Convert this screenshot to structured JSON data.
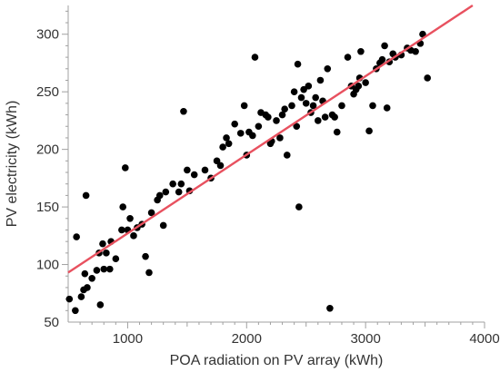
{
  "chart_data": {
    "type": "scatter",
    "title": "",
    "xlabel": "POA radiation on PV array (kWh)",
    "ylabel": "PV electricity (kWh)",
    "xlim": [
      500,
      4000
    ],
    "ylim": [
      50,
      325
    ],
    "xticks": [
      1000,
      2000,
      3000,
      4000
    ],
    "yticks": [
      50,
      100,
      150,
      200,
      250,
      300
    ],
    "grid": false,
    "legend": "none",
    "colors": {
      "points": "#000000",
      "fit_line": "#e8515f",
      "axis": "#a0a0a0"
    },
    "series": [
      {
        "points": [
          [
            510,
            70
          ],
          [
            560,
            60
          ],
          [
            570,
            124
          ],
          [
            610,
            72
          ],
          [
            630,
            78
          ],
          [
            640,
            92
          ],
          [
            650,
            160
          ],
          [
            660,
            80
          ],
          [
            700,
            88
          ],
          [
            740,
            95
          ],
          [
            760,
            110
          ],
          [
            770,
            65
          ],
          [
            790,
            118
          ],
          [
            800,
            96
          ],
          [
            820,
            110
          ],
          [
            850,
            96
          ],
          [
            860,
            120
          ],
          [
            900,
            105
          ],
          [
            950,
            130
          ],
          [
            960,
            150
          ],
          [
            980,
            184
          ],
          [
            1000,
            130
          ],
          [
            1020,
            140
          ],
          [
            1050,
            125
          ],
          [
            1080,
            132
          ],
          [
            1120,
            135
          ],
          [
            1150,
            107
          ],
          [
            1180,
            93
          ],
          [
            1200,
            145
          ],
          [
            1250,
            156
          ],
          [
            1270,
            160
          ],
          [
            1300,
            134
          ],
          [
            1320,
            163
          ],
          [
            1380,
            170
          ],
          [
            1430,
            163
          ],
          [
            1450,
            170
          ],
          [
            1470,
            233
          ],
          [
            1500,
            182
          ],
          [
            1520,
            164
          ],
          [
            1560,
            178
          ],
          [
            1650,
            182
          ],
          [
            1700,
            175
          ],
          [
            1750,
            190
          ],
          [
            1780,
            186
          ],
          [
            1800,
            202
          ],
          [
            1830,
            210
          ],
          [
            1850,
            205
          ],
          [
            1900,
            222
          ],
          [
            1950,
            214
          ],
          [
            1980,
            238
          ],
          [
            2000,
            195
          ],
          [
            2020,
            215
          ],
          [
            2050,
            212
          ],
          [
            2070,
            280
          ],
          [
            2100,
            220
          ],
          [
            2120,
            232
          ],
          [
            2160,
            230
          ],
          [
            2180,
            228
          ],
          [
            2200,
            205
          ],
          [
            2210,
            207
          ],
          [
            2250,
            225
          ],
          [
            2280,
            210
          ],
          [
            2300,
            230
          ],
          [
            2320,
            235
          ],
          [
            2340,
            195
          ],
          [
            2380,
            238
          ],
          [
            2400,
            250
          ],
          [
            2420,
            220
          ],
          [
            2430,
            274
          ],
          [
            2440,
            150
          ],
          [
            2460,
            245
          ],
          [
            2480,
            252
          ],
          [
            2500,
            240
          ],
          [
            2520,
            255
          ],
          [
            2540,
            232
          ],
          [
            2560,
            238
          ],
          [
            2580,
            245
          ],
          [
            2600,
            225
          ],
          [
            2620,
            260
          ],
          [
            2640,
            242
          ],
          [
            2660,
            228
          ],
          [
            2680,
            270
          ],
          [
            2700,
            62
          ],
          [
            2720,
            230
          ],
          [
            2740,
            228
          ],
          [
            2760,
            215
          ],
          [
            2800,
            238
          ],
          [
            2850,
            280
          ],
          [
            2880,
            255
          ],
          [
            2900,
            248
          ],
          [
            2920,
            252
          ],
          [
            2940,
            255
          ],
          [
            2950,
            262
          ],
          [
            2960,
            285
          ],
          [
            3000,
            258
          ],
          [
            3030,
            216
          ],
          [
            3060,
            238
          ],
          [
            3090,
            270
          ],
          [
            3120,
            275
          ],
          [
            3140,
            278
          ],
          [
            3160,
            290
          ],
          [
            3180,
            236
          ],
          [
            3200,
            276
          ],
          [
            3230,
            283
          ],
          [
            3250,
            280
          ],
          [
            3300,
            282
          ],
          [
            3350,
            288
          ],
          [
            3380,
            286
          ],
          [
            3420,
            285
          ],
          [
            3460,
            292
          ],
          [
            3480,
            300
          ],
          [
            3520,
            262
          ]
        ]
      }
    ],
    "fit_line": {
      "x": [
        500,
        3900
      ],
      "y": [
        93,
        325
      ]
    }
  }
}
